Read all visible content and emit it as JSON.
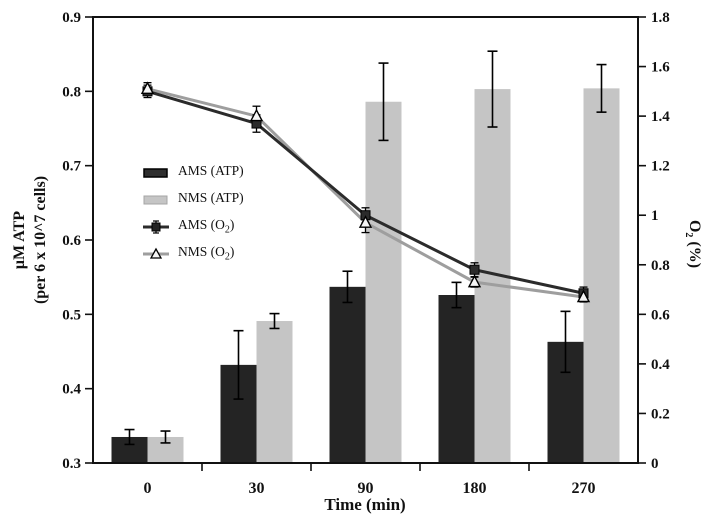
{
  "chart_data": {
    "type": "bar+line combo, dual y-axis",
    "categories": [
      "0",
      "30",
      "90",
      "180",
      "270"
    ],
    "series": [
      {
        "key": "ams-atp",
        "name": "AMS (ATP)",
        "kind": "bar",
        "axis": "left",
        "color": "#242424",
        "values": [
          0.335,
          0.432,
          0.537,
          0.526,
          0.463
        ],
        "errors": [
          0.01,
          0.046,
          0.021,
          0.017,
          0.041
        ]
      },
      {
        "key": "nms-atp",
        "name": "NMS (ATP)",
        "kind": "bar",
        "axis": "left",
        "color": "#c5c5c5",
        "values": [
          0.335,
          0.491,
          0.786,
          0.803,
          0.804
        ],
        "errors": [
          0.008,
          0.01,
          0.052,
          0.051,
          0.032
        ]
      },
      {
        "key": "ams-o2",
        "name": "AMS (O2)",
        "kind": "line",
        "axis": "right",
        "color": "#2b2b2b",
        "marker": "square",
        "values": [
          1.5,
          1.37,
          1.0,
          0.78,
          0.685
        ],
        "errors": [
          0.025,
          0.035,
          0.03,
          0.028,
          0.025
        ]
      },
      {
        "key": "nms-o2",
        "name": "NMS (O2)",
        "kind": "line",
        "axis": "right",
        "color": "#9e9e9e",
        "marker": "triangle",
        "values": [
          1.51,
          1.4,
          0.97,
          0.73,
          0.67
        ],
        "errors": [
          0.025,
          0.04,
          0.04,
          0.02,
          0.02
        ]
      }
    ],
    "left_axis": {
      "title_line1": "μM ATP",
      "title_line2": "(per 6 x 10^7 cells)",
      "min": 0.3,
      "max": 0.9,
      "ticks": [
        "0.3",
        "0.4",
        "0.5",
        "0.6",
        "0.7",
        "0.8",
        "0.9"
      ],
      "tick_values": [
        0.3,
        0.4,
        0.5,
        0.6,
        0.7,
        0.8,
        0.9
      ]
    },
    "right_axis": {
      "title_pre": "O",
      "title_sub": "2",
      "title_post": " (%)",
      "min": 0,
      "max": 1.8,
      "ticks": [
        "0",
        "0.2",
        "0.4",
        "0.6",
        "0.8",
        "1",
        "1.2",
        "1.4",
        "1.6",
        "1.8"
      ],
      "tick_values": [
        0,
        0.2,
        0.4,
        0.6,
        0.8,
        1.0,
        1.2,
        1.4,
        1.6,
        1.8
      ]
    },
    "x_axis": {
      "title": "Time (min)",
      "labels": [
        "0",
        "30",
        "90",
        "180",
        "270"
      ]
    },
    "grid": "off",
    "legend_position": "upper-left-inside",
    "colors": {
      "ams_bar": "#242424",
      "nms_bar": "#c5c5c5",
      "ams_line": "#2b2b2b",
      "nms_line": "#9e9e9e",
      "axis": "#111111",
      "background": "#ffffff",
      "error_bar": "#000000"
    }
  },
  "legend": {
    "items": [
      {
        "pre": "AMS (ATP)",
        "sub": "",
        "post": ""
      },
      {
        "pre": "NMS (ATP)",
        "sub": "",
        "post": ""
      },
      {
        "pre": "AMS (O",
        "sub": "2",
        "post": ")"
      },
      {
        "pre": "NMS (O",
        "sub": "2",
        "post": ")"
      }
    ]
  }
}
